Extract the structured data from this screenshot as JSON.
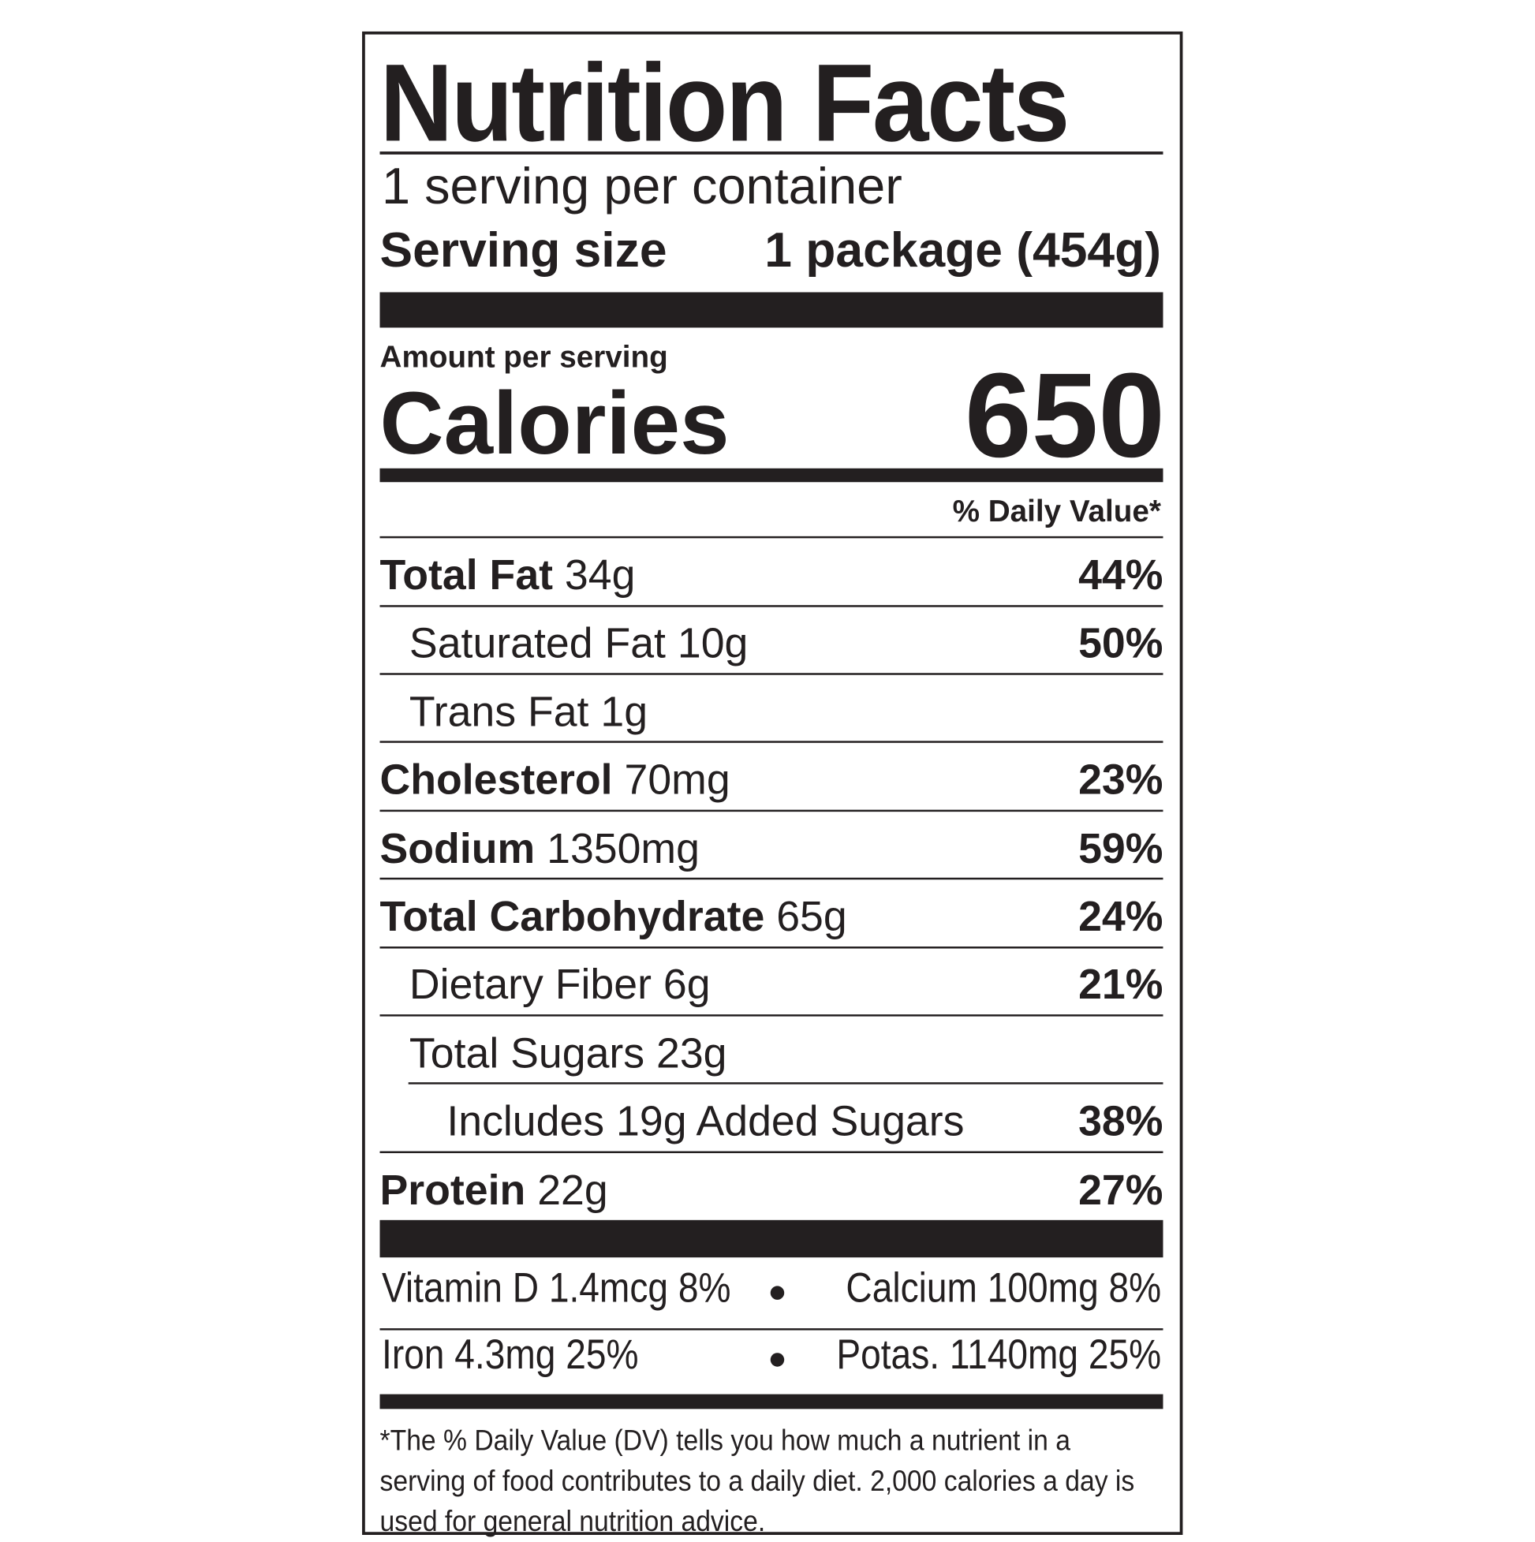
{
  "header": {
    "title": "Nutrition Facts"
  },
  "servings": {
    "per_container": "1 serving per container",
    "size_label": "Serving size",
    "size_value": "1 package (454g)"
  },
  "calories": {
    "amount_label": "Amount per serving",
    "label": "Calories",
    "value": "650"
  },
  "dv_header": "% Daily Value*",
  "nutrients": [
    {
      "name": "Total Fat",
      "amount": "34g",
      "dv": "44%"
    },
    {
      "name": "Saturated Fat",
      "amount": "10g",
      "dv": "50%"
    },
    {
      "name": "Trans Fat",
      "amount": "1g"
    },
    {
      "name": "Cholesterol",
      "amount": "70mg",
      "dv": "23%"
    },
    {
      "name": "Sodium",
      "amount": "1350mg",
      "dv": "59%"
    },
    {
      "name": "Total Carbohydrate",
      "amount": "65g",
      "dv": "24%"
    },
    {
      "name": "Dietary Fiber",
      "amount": "6g",
      "dv": "21%"
    },
    {
      "name": "Total Sugars",
      "amount": "23g"
    },
    {
      "name": "Includes 19g Added Sugars",
      "dv": "38%"
    },
    {
      "name": "Protein",
      "amount": "22g",
      "dv": "27%"
    }
  ],
  "vitamins": [
    [
      "Vitamin D 1.4mcg 8%",
      "Calcium 100mg 8%"
    ],
    [
      "Iron 4.3mg 25%",
      "Potas. 1140mg 25%"
    ]
  ],
  "footnote": "*The % Daily Value (DV) tells you how much a nutrient in a serving of food contributes to a daily diet. 2,000 calories a day is used for general nutrition advice."
}
